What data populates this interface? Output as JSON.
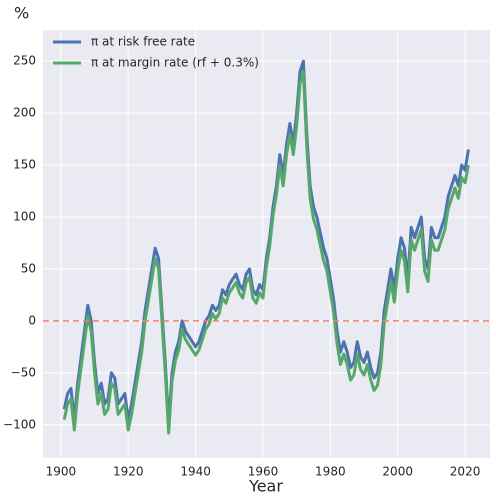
{
  "chart_data": {
    "type": "line",
    "ylabel": "%",
    "xlabel": "Year",
    "x": [
      1901,
      1902,
      1903,
      1904,
      1905,
      1906,
      1907,
      1908,
      1909,
      1910,
      1911,
      1912,
      1913,
      1914,
      1915,
      1916,
      1917,
      1918,
      1919,
      1920,
      1921,
      1922,
      1923,
      1924,
      1925,
      1926,
      1927,
      1928,
      1929,
      1930,
      1931,
      1932,
      1933,
      1934,
      1935,
      1936,
      1937,
      1938,
      1939,
      1940,
      1941,
      1942,
      1943,
      1944,
      1945,
      1946,
      1947,
      1948,
      1949,
      1950,
      1951,
      1952,
      1953,
      1954,
      1955,
      1956,
      1957,
      1958,
      1959,
      1960,
      1961,
      1962,
      1963,
      1964,
      1965,
      1966,
      1967,
      1968,
      1969,
      1970,
      1971,
      1972,
      1973,
      1974,
      1975,
      1976,
      1977,
      1978,
      1979,
      1980,
      1981,
      1982,
      1983,
      1984,
      1985,
      1986,
      1987,
      1988,
      1989,
      1990,
      1991,
      1992,
      1993,
      1994,
      1995,
      1996,
      1997,
      1998,
      1999,
      2000,
      2001,
      2002,
      2003,
      2004,
      2005,
      2006,
      2007,
      2008,
      2009,
      2010,
      2011,
      2012,
      2013,
      2014,
      2015,
      2016,
      2017,
      2018,
      2019,
      2020,
      2021
    ],
    "series": [
      {
        "name": "π at risk free rate",
        "color": "#4c72b0",
        "values": [
          -85,
          -70,
          -65,
          -95,
          -60,
          -35,
          -10,
          15,
          0,
          -40,
          -70,
          -60,
          -80,
          -75,
          -50,
          -55,
          -80,
          -75,
          -70,
          -95,
          -80,
          -60,
          -40,
          -20,
          10,
          30,
          50,
          70,
          60,
          10,
          -40,
          -100,
          -50,
          -30,
          -20,
          0,
          -10,
          -15,
          -20,
          -25,
          -20,
          -10,
          0,
          5,
          15,
          10,
          15,
          30,
          25,
          35,
          40,
          45,
          35,
          30,
          45,
          50,
          30,
          25,
          35,
          30,
          60,
          80,
          110,
          130,
          160,
          140,
          170,
          190,
          170,
          200,
          240,
          250,
          180,
          130,
          110,
          100,
          85,
          70,
          60,
          40,
          20,
          -10,
          -30,
          -20,
          -30,
          -45,
          -40,
          -20,
          -35,
          -40,
          -30,
          -45,
          -55,
          -50,
          -30,
          10,
          30,
          50,
          30,
          60,
          80,
          70,
          40,
          90,
          80,
          90,
          100,
          60,
          50,
          90,
          80,
          80,
          90,
          100,
          120,
          130,
          140,
          130,
          150,
          145,
          165
        ]
      },
      {
        "name": "π at margin rate (rf + 0.3%)",
        "color": "#55a868",
        "values": [
          -95,
          -80,
          -75,
          -105,
          -70,
          -45,
          -20,
          5,
          -10,
          -50,
          -80,
          -70,
          -90,
          -85,
          -60,
          -65,
          -90,
          -85,
          -80,
          -105,
          -90,
          -70,
          -50,
          -30,
          0,
          20,
          40,
          60,
          50,
          0,
          -50,
          -108,
          -58,
          -38,
          -28,
          -8,
          -18,
          -23,
          -28,
          -33,
          -28,
          -18,
          -8,
          -3,
          7,
          2,
          7,
          22,
          17,
          27,
          32,
          37,
          27,
          22,
          37,
          42,
          22,
          17,
          27,
          22,
          52,
          72,
          102,
          122,
          150,
          130,
          160,
          180,
          160,
          188,
          228,
          240,
          168,
          118,
          98,
          88,
          73,
          58,
          48,
          28,
          8,
          -22,
          -42,
          -32,
          -42,
          -57,
          -52,
          -32,
          -47,
          -52,
          -42,
          -57,
          -67,
          -62,
          -42,
          -2,
          18,
          38,
          18,
          48,
          68,
          58,
          28,
          78,
          68,
          78,
          88,
          48,
          38,
          78,
          68,
          68,
          78,
          88,
          108,
          118,
          128,
          118,
          138,
          133,
          150
        ]
      }
    ],
    "xlim": [
      1894.7,
      2027.4
    ],
    "xticks": [
      1900,
      1920,
      1940,
      1960,
      1980,
      2000,
      2020
    ],
    "ylim": [
      -132,
      280
    ],
    "yticks": [
      {
        "value": -100,
        "label": "−100"
      },
      {
        "value": -50,
        "label": "−50"
      },
      0,
      50,
      100,
      150,
      200,
      250
    ],
    "grid": true,
    "legend": "upper left",
    "reference_line": {
      "value": 0,
      "color": "#f08070"
    }
  }
}
